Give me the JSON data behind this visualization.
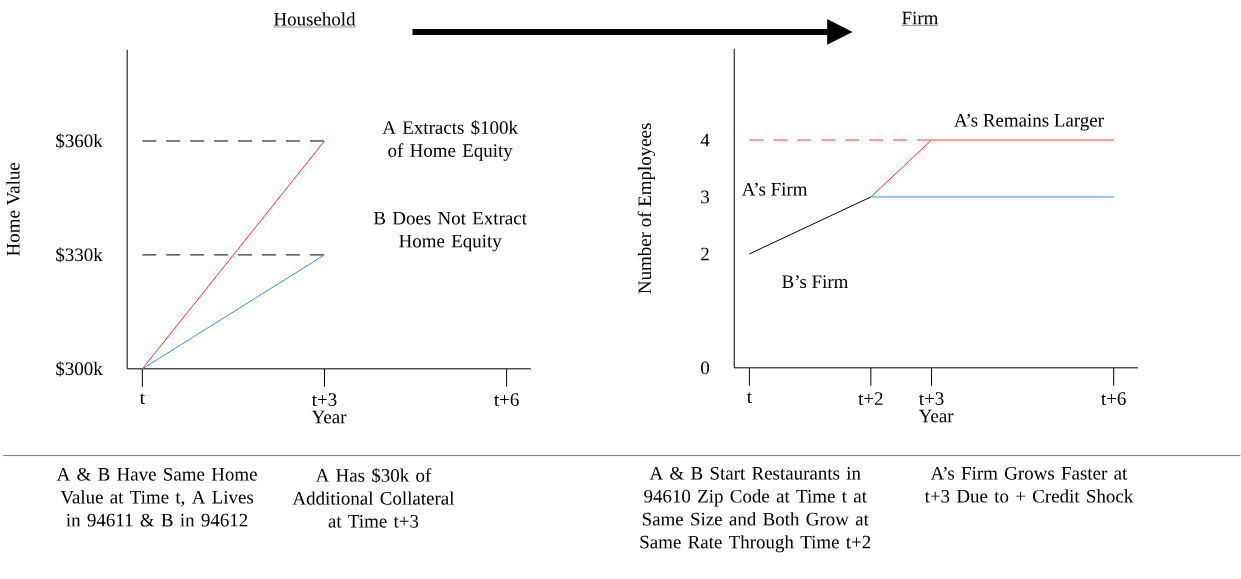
{
  "chart_data": [
    {
      "type": "line",
      "title": "Household",
      "xlabel": "Year",
      "ylabel": "Home Value",
      "categories": [
        "t",
        null,
        null,
        "t+3",
        null,
        null,
        "t+6"
      ],
      "ylim": [
        300,
        384
      ],
      "yticks": [
        {
          "value": 300,
          "label": "$300k"
        },
        {
          "value": 330,
          "label": "$330k"
        },
        {
          "value": 360,
          "label": "$360k"
        }
      ],
      "series": [
        {
          "color": "#000000",
          "line_style": "dashed",
          "values": [
            360,
            360,
            360,
            360,
            null,
            null,
            null
          ]
        },
        {
          "color": "#000000",
          "line_style": "dashed",
          "values": [
            330,
            330,
            330,
            330,
            null,
            null,
            null
          ]
        },
        {
          "color": "#ff3333",
          "line_style": "solid",
          "values": [
            300,
            320,
            340,
            360,
            null,
            null,
            null
          ]
        },
        {
          "color": "#3a8fd9",
          "line_style": "solid",
          "values": [
            300,
            310,
            320,
            330,
            null,
            null,
            null
          ]
        }
      ],
      "annotations": [
        "A Extracts $100k of Home Equity",
        "B Does Not Extract Home Equity",
        "A & B Have Same Home Value at Time t, A Lives in 94611 & B in 94612",
        "A Has $30k of Additional Collateral at Time t+3"
      ]
    },
    {
      "type": "line",
      "title": "Firm",
      "xlabel": "Year",
      "ylabel": "Number of Employees",
      "categories": [
        "t",
        null,
        "t+2",
        "t+3",
        null,
        null,
        "t+6"
      ],
      "ylim": [
        0,
        5.6
      ],
      "yticks": [
        0,
        2,
        3,
        4
      ],
      "series": [
        {
          "color": "#ff3333",
          "line_style": "dashed",
          "values": [
            4,
            4,
            4,
            4,
            null,
            null,
            null
          ]
        },
        {
          "color": "#000000",
          "line_style": "solid",
          "values": [
            2,
            2.5,
            3,
            null,
            null,
            null,
            null
          ]
        },
        {
          "color": "#ff3333",
          "line_style": "solid",
          "values": [
            null,
            null,
            3,
            4,
            4,
            4,
            4
          ]
        },
        {
          "color": "#3a8fd9",
          "line_style": "solid",
          "values": [
            null,
            null,
            3,
            3,
            3,
            3,
            3
          ]
        }
      ],
      "annotations": [
        "A’s Remains Larger",
        "A’s Firm",
        "B’s Firm",
        "A & B Start Restaurants in 94610 Zip Code at Time t at Same Size and Both Grow at Same Rate Through Time t+2",
        "A’s Firm Grows Faster at t+3 Due to + Credit Shock"
      ]
    }
  ]
}
